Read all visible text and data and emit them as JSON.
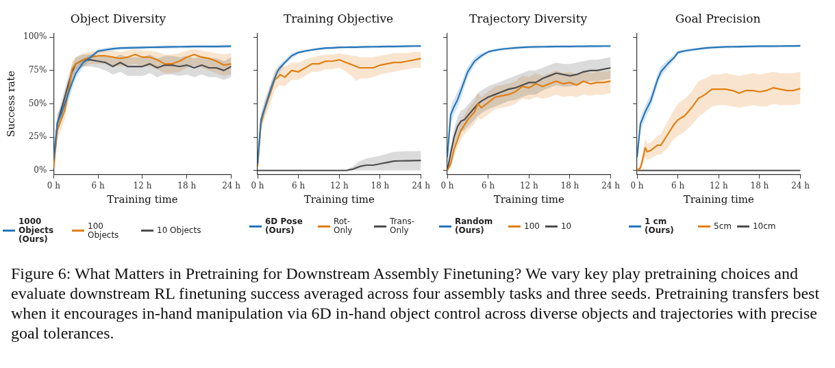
{
  "chart_data": [
    {
      "type": "line",
      "title": "Object Diversity",
      "xlabel": "Training time",
      "ylabel": "Success rate",
      "legend": "bottom",
      "grid": false,
      "annotations": [
        "Figure 6: What Matters in Pretraining for Downstream Assembly Finetuning? We vary key play pretraining choices and evaluate downstream RL finetuning success averaged across four assembly tasks and three seeds. Pretraining transfers best when it encourages in-hand manipulation via 6D in-hand object control across diverse objects and trajectories with precise goal tolerances."
      ],
      "xlim": [
        0,
        24
      ],
      "xticks": [
        {
          "value": 0,
          "label": "0 h"
        },
        {
          "value": 6,
          "label": "6 h"
        },
        {
          "value": 12,
          "label": "12 h"
        },
        {
          "value": 18,
          "label": "18 h"
        },
        {
          "value": 24,
          "label": "24 h"
        }
      ],
      "ylim": [
        -3,
        103
      ],
      "yticks": [
        {
          "value": 0,
          "label": "0%"
        },
        {
          "value": 25,
          "label": "25%"
        },
        {
          "value": 50,
          "label": "50%"
        },
        {
          "value": 75,
          "label": "75%"
        },
        {
          "value": 100,
          "label": "100%"
        }
      ],
      "x": [
        0,
        0.5,
        1,
        1.5,
        2,
        2.5,
        3,
        4,
        5,
        6,
        7,
        8,
        9,
        10,
        11,
        12,
        13,
        14,
        15,
        16,
        17,
        18,
        19,
        20,
        21,
        22,
        23,
        24
      ],
      "series": [
        {
          "name": "1000 Objects (Ours)",
          "color": "#2776b8",
          "values": [
            8,
            36,
            42,
            50,
            58,
            66,
            73,
            81,
            85,
            89.5,
            90.5,
            91.3,
            91.8,
            92,
            92.1,
            92.2,
            92.4,
            92.5,
            92.6,
            92.7,
            92.8,
            92.9,
            93,
            93,
            93,
            93,
            93.1,
            93.2
          ],
          "lower": [
            4,
            30,
            36,
            44,
            52,
            61,
            69,
            78,
            83,
            88,
            89,
            90,
            90.5,
            90.8,
            91,
            91,
            91.2,
            91.3,
            91.4,
            91.5,
            91.6,
            91.7,
            91.8,
            91.8,
            91.8,
            91.8,
            91.9,
            92
          ],
          "upper": [
            12,
            42,
            48,
            56,
            64,
            71,
            77,
            84,
            87,
            91,
            92,
            92.6,
            93,
            93.2,
            93.3,
            93.4,
            93.6,
            93.7,
            93.8,
            93.9,
            94,
            94.1,
            94.2,
            94.2,
            94.2,
            94.2,
            94.3,
            94.4
          ]
        },
        {
          "name": "100 Objects",
          "color": "#e07f10",
          "values": [
            2,
            30,
            38,
            45,
            60,
            76,
            80,
            83,
            85,
            86,
            86,
            85,
            84,
            85,
            87,
            85,
            85,
            83,
            80,
            80,
            82,
            85,
            87,
            85,
            84,
            82,
            79,
            80
          ],
          "lower": [
            0,
            24,
            31,
            38,
            53,
            70,
            75,
            78,
            80,
            80,
            80,
            79,
            78,
            79,
            80,
            78,
            78,
            76,
            73,
            73,
            74,
            77,
            79,
            77,
            75,
            73,
            71,
            72
          ],
          "upper": [
            5,
            36,
            44,
            52,
            67,
            82,
            85,
            88,
            89,
            90,
            90,
            90,
            89,
            90,
            91,
            90,
            90,
            89,
            87,
            87,
            88,
            90,
            91,
            90,
            89,
            88,
            87,
            88
          ]
        },
        {
          "name": "10 Objects",
          "color": "#4d4d4d",
          "values": [
            5,
            35,
            45,
            55,
            65,
            74,
            80,
            83,
            83,
            82,
            81,
            78,
            81,
            78,
            78,
            78,
            80,
            77,
            79,
            79,
            78,
            79,
            77,
            79,
            77,
            77,
            75,
            78
          ],
          "lower": [
            2,
            29,
            39,
            49,
            59,
            68,
            75,
            78,
            78,
            77,
            75,
            72,
            74,
            71,
            71,
            71,
            73,
            70,
            72,
            72,
            71,
            72,
            70,
            72,
            70,
            70,
            68,
            70
          ],
          "upper": [
            8,
            41,
            51,
            61,
            71,
            79,
            85,
            87,
            87,
            86,
            86,
            84,
            87,
            85,
            85,
            85,
            87,
            84,
            86,
            86,
            85,
            86,
            84,
            86,
            84,
            84,
            82,
            85
          ]
        }
      ]
    },
    {
      "type": "line",
      "title": "Training Objective",
      "xlabel": "Training time",
      "legend": "bottom",
      "grid": false,
      "tick_labels": "x",
      "xlim": [
        0,
        24
      ],
      "xticks": [
        {
          "value": 0,
          "label": "0 h"
        },
        {
          "value": 6,
          "label": "6 h"
        },
        {
          "value": 12,
          "label": "12 h"
        },
        {
          "value": 18,
          "label": "18 h"
        },
        {
          "value": 24,
          "label": "24 h"
        }
      ],
      "ylim": [
        -3,
        103
      ],
      "yticks": [
        {
          "value": 0,
          "label": null
        },
        {
          "value": 25,
          "label": null
        },
        {
          "value": 50,
          "label": null
        },
        {
          "value": 75,
          "label": null
        },
        {
          "value": 100,
          "label": null
        }
      ],
      "x": [
        0,
        0.5,
        1,
        2,
        2.5,
        3,
        3.3,
        4,
        5,
        6,
        7,
        8,
        9,
        10,
        11,
        12,
        13,
        14,
        14.5,
        15,
        16,
        17,
        18,
        19,
        20,
        21,
        22,
        23,
        24
      ],
      "series": [
        {
          "name": "6D Pose (Ours)",
          "color": "#2776b8",
          "values": [
            5,
            38,
            46,
            62,
            69,
            75,
            77,
            81,
            86,
            88.5,
            89.6,
            90.5,
            91.2,
            91.8,
            92,
            92.3,
            92.4,
            92.5,
            92.5,
            92.6,
            92.7,
            92.8,
            92.9,
            93,
            93,
            93.1,
            93.2,
            93.3,
            93.4
          ],
          "lower": [
            2,
            33,
            41,
            58,
            65,
            72,
            74,
            79,
            84,
            87.3,
            88.5,
            89.5,
            90.2,
            90.8,
            91,
            91.3,
            91.4,
            91.5,
            91.5,
            91.6,
            91.7,
            91.8,
            91.9,
            92,
            92,
            92.1,
            92.2,
            92.3,
            92.4
          ],
          "upper": [
            8,
            43,
            51,
            66,
            73,
            78,
            80,
            83,
            88,
            89.7,
            90.7,
            91.5,
            92.2,
            92.8,
            93,
            93.3,
            93.4,
            93.5,
            93.5,
            93.6,
            93.7,
            93.8,
            93.9,
            94,
            94,
            94.1,
            94.2,
            94.3,
            94.4
          ]
        },
        {
          "name": "Rot-Only",
          "color": "#e07f10",
          "values": [
            3,
            35,
            45,
            60,
            68,
            70,
            72,
            70,
            75,
            74,
            77,
            80,
            80,
            82,
            82,
            83,
            81,
            79,
            78,
            77,
            77,
            77,
            79,
            80,
            81,
            81,
            82,
            83,
            84
          ],
          "lower": [
            0,
            29,
            38,
            52,
            60,
            63,
            64,
            63,
            68,
            68,
            71,
            74,
            74,
            76,
            76,
            77,
            74,
            70,
            67,
            69,
            69,
            70,
            72,
            73,
            74,
            75,
            76,
            77,
            77
          ],
          "upper": [
            6,
            41,
            52,
            67,
            75,
            77,
            79,
            78,
            81,
            81,
            83,
            85,
            86,
            87,
            87,
            88,
            87,
            86,
            86,
            85,
            85,
            85,
            86,
            87,
            88,
            88,
            88,
            89,
            89
          ]
        },
        {
          "name": "Trans-Only",
          "color": "#4d4d4d",
          "values": [
            0,
            0,
            0,
            0,
            0,
            0,
            0,
            0,
            0,
            0,
            0,
            0,
            0,
            0,
            0,
            0,
            0,
            1,
            2,
            3,
            4,
            4,
            5,
            6,
            7,
            7.2,
            7.3,
            7.4,
            7.5
          ],
          "lower": [
            0,
            0,
            0,
            0,
            0,
            0,
            0,
            0,
            0,
            0,
            0,
            0,
            0,
            0,
            0,
            0,
            0,
            0,
            0,
            0,
            0,
            0,
            0,
            0,
            0,
            0,
            0,
            0,
            0
          ],
          "upper": [
            0,
            0,
            0,
            0,
            0,
            0,
            0,
            0,
            0,
            0,
            0,
            0,
            0,
            0,
            0,
            0,
            0.5,
            3,
            5,
            7,
            9,
            10,
            11,
            12.5,
            14,
            14.3,
            14.5,
            14.5,
            14.5
          ]
        }
      ]
    },
    {
      "type": "line",
      "title": "Trajectory Diversity",
      "xlabel": "Training time",
      "legend": "bottom",
      "grid": false,
      "tick_labels": "x",
      "xlim": [
        0,
        24
      ],
      "xticks": [
        {
          "value": 0,
          "label": "0 h"
        },
        {
          "value": 6,
          "label": "6 h"
        },
        {
          "value": 12,
          "label": "12 h"
        },
        {
          "value": 18,
          "label": "18 h"
        },
        {
          "value": 24,
          "label": "24 h"
        }
      ],
      "ylim": [
        -3,
        103
      ],
      "yticks": [
        {
          "value": 0,
          "label": null
        },
        {
          "value": 25,
          "label": null
        },
        {
          "value": 50,
          "label": null
        },
        {
          "value": 75,
          "label": null
        },
        {
          "value": 100,
          "label": null
        }
      ],
      "x": [
        0,
        0.5,
        1,
        1.5,
        2,
        2.5,
        3,
        4,
        4.5,
        5,
        6,
        7,
        8,
        9,
        10,
        11,
        12,
        13,
        14,
        15,
        16,
        17,
        18,
        19,
        20,
        21,
        22,
        23,
        24
      ],
      "series": [
        {
          "name": "Random (Ours)",
          "color": "#2776b8",
          "values": [
            10,
            42,
            48,
            53,
            60,
            67,
            74,
            82,
            84,
            86,
            89,
            90.2,
            91,
            91.5,
            92,
            92.3,
            92.6,
            92.7,
            92.8,
            92.9,
            93,
            93,
            93,
            93.1,
            93.1,
            93.2,
            93.2,
            93.3,
            93.3
          ],
          "lower": [
            6,
            36,
            42,
            47,
            54,
            62,
            70,
            79,
            82,
            84,
            88,
            89,
            90,
            90.5,
            91,
            91.3,
            91.6,
            91.7,
            91.8,
            91.9,
            92,
            92,
            92,
            92.1,
            92.1,
            92.2,
            92.2,
            92.3,
            92.3
          ],
          "upper": [
            14,
            48,
            54,
            59,
            65,
            72,
            78,
            85,
            87,
            88,
            90,
            91.2,
            92,
            92.5,
            93,
            93.3,
            93.6,
            93.7,
            93.8,
            93.9,
            94,
            94,
            94,
            94.1,
            94.1,
            94.2,
            94.2,
            94.3,
            94.3
          ]
        },
        {
          "name": "100",
          "color": "#e07f10",
          "values": [
            0,
            5,
            16,
            23,
            30,
            34,
            38,
            44,
            50,
            47,
            51,
            55,
            56,
            57,
            59,
            63,
            62,
            65,
            63,
            65,
            67,
            65,
            66,
            64,
            67,
            65,
            66,
            66,
            67
          ],
          "lower": [
            0,
            2,
            11,
            17,
            23,
            27,
            30,
            35,
            40,
            38,
            42,
            46,
            47,
            48,
            50,
            54,
            53,
            55,
            54,
            55,
            57,
            55,
            56,
            55,
            57,
            56,
            57,
            57,
            58
          ],
          "upper": [
            1,
            8,
            21,
            29,
            37,
            41,
            46,
            52,
            58,
            55,
            59,
            63,
            64,
            65,
            67,
            71,
            70,
            73,
            71,
            73,
            75,
            73,
            74,
            72,
            75,
            73,
            74,
            74,
            75
          ]
        },
        {
          "name": "10",
          "color": "#4d4d4d",
          "values": [
            0,
            13,
            25,
            33,
            37,
            38,
            41,
            47,
            50,
            52,
            55,
            57,
            59,
            61,
            62,
            64,
            66,
            66,
            69,
            71,
            73,
            72,
            71,
            72,
            74,
            75,
            75,
            76,
            77
          ],
          "lower": [
            0,
            8,
            18,
            25,
            29,
            30,
            33,
            38,
            41,
            43,
            46,
            48,
            50,
            52,
            53,
            55,
            57,
            57,
            60,
            62,
            64,
            63,
            63,
            64,
            66,
            67,
            67,
            68,
            69
          ],
          "upper": [
            1,
            18,
            31,
            40,
            45,
            46,
            49,
            55,
            58,
            60,
            63,
            65,
            67,
            69,
            71,
            73,
            75,
            75,
            77,
            79,
            81,
            80,
            80,
            81,
            82,
            83,
            83,
            84,
            85
          ]
        }
      ]
    },
    {
      "type": "line",
      "title": "Goal Precision",
      "xlabel": "Training time",
      "legend": "bottom",
      "grid": false,
      "tick_labels": "x",
      "xlim": [
        0,
        24
      ],
      "xticks": [
        {
          "value": 0,
          "label": "0 h"
        },
        {
          "value": 6,
          "label": "6 h"
        },
        {
          "value": 12,
          "label": "12 h"
        },
        {
          "value": 18,
          "label": "18 h"
        },
        {
          "value": 24,
          "label": "24 h"
        }
      ],
      "ylim": [
        -3,
        103
      ],
      "yticks": [
        {
          "value": 0,
          "label": null
        },
        {
          "value": 25,
          "label": null
        },
        {
          "value": 50,
          "label": null
        },
        {
          "value": 75,
          "label": null
        },
        {
          "value": 100,
          "label": null
        }
      ],
      "x": [
        0,
        0.5,
        0.9,
        1.2,
        1.5,
        2,
        3,
        3.5,
        4.5,
        5.5,
        6,
        7,
        8,
        9,
        10,
        11,
        12,
        13,
        14,
        15,
        16,
        17,
        18,
        19,
        20,
        21,
        22,
        23,
        24
      ],
      "series": [
        {
          "name": "1 cm (Ours)",
          "color": "#2776b8",
          "values": [
            10,
            35,
            40,
            44,
            47,
            52,
            68,
            74,
            80,
            85,
            88.5,
            89.7,
            90.5,
            91.2,
            91.8,
            92.2,
            92.5,
            92.7,
            92.8,
            92.9,
            93,
            93.1,
            93.2,
            93.2,
            93.2,
            93.3,
            93.4,
            93.4,
            93.5
          ],
          "lower": [
            6,
            30,
            35,
            39,
            42,
            47,
            64,
            70,
            77,
            83,
            87,
            88.5,
            89.5,
            90.2,
            90.8,
            91.2,
            91.5,
            91.7,
            91.8,
            91.9,
            92,
            92.1,
            92.2,
            92.2,
            92.2,
            92.3,
            92.4,
            92.4,
            92.5
          ],
          "upper": [
            14,
            40,
            45,
            49,
            52,
            57,
            72,
            78,
            83,
            87,
            90,
            90.9,
            91.5,
            92.2,
            92.8,
            93.2,
            93.5,
            93.7,
            93.8,
            93.9,
            94,
            94.1,
            94.2,
            94.2,
            94.2,
            94.3,
            94.4,
            94.4,
            94.5
          ]
        },
        {
          "name": "5cm",
          "color": "#e07f10",
          "values": [
            0,
            2,
            10,
            17,
            14,
            15,
            19,
            19,
            27,
            35,
            38,
            41,
            47,
            54,
            57,
            61,
            61,
            61,
            60,
            58,
            60,
            60,
            59,
            60,
            62,
            61,
            60,
            60,
            61.5
          ],
          "lower": [
            0,
            0,
            5,
            10,
            8,
            9,
            12,
            12,
            17,
            24,
            26,
            29,
            34,
            40,
            44,
            48,
            49,
            49,
            48,
            47,
            48,
            49,
            48,
            48,
            50,
            49,
            49,
            49,
            50
          ],
          "upper": [
            1,
            4,
            15,
            24,
            20,
            21,
            26,
            27,
            37,
            46,
            50,
            54,
            59,
            67,
            69,
            72,
            72,
            73,
            72,
            71,
            72,
            73,
            72,
            73,
            74,
            73,
            73,
            73,
            74
          ]
        },
        {
          "name": "10cm",
          "color": "#4d4d4d",
          "values": [
            0,
            0,
            0,
            0,
            0,
            0,
            0,
            0,
            0,
            0,
            0,
            0,
            0,
            0,
            0,
            0,
            0,
            0,
            0,
            0,
            0,
            0,
            0,
            0,
            0,
            0,
            0,
            0,
            0
          ]
        }
      ]
    }
  ]
}
